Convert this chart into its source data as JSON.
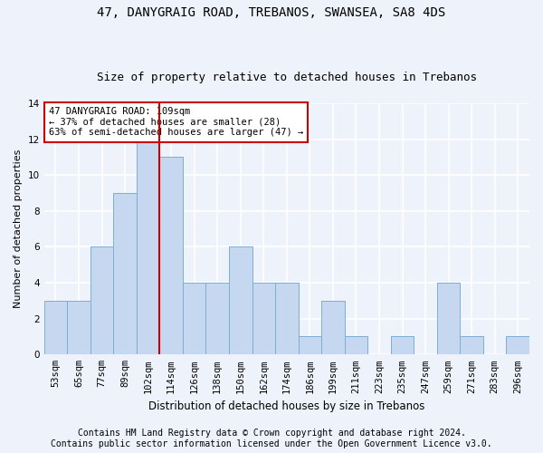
{
  "title1": "47, DANYGRAIG ROAD, TREBANOS, SWANSEA, SA8 4DS",
  "title2": "Size of property relative to detached houses in Trebanos",
  "xlabel": "Distribution of detached houses by size in Trebanos",
  "ylabel": "Number of detached properties",
  "categories": [
    "53sqm",
    "65sqm",
    "77sqm",
    "89sqm",
    "102sqm",
    "114sqm",
    "126sqm",
    "138sqm",
    "150sqm",
    "162sqm",
    "174sqm",
    "186sqm",
    "199sqm",
    "211sqm",
    "223sqm",
    "235sqm",
    "247sqm",
    "259sqm",
    "271sqm",
    "283sqm",
    "296sqm"
  ],
  "values": [
    3,
    3,
    6,
    9,
    12,
    11,
    4,
    4,
    6,
    4,
    4,
    1,
    3,
    1,
    0,
    1,
    0,
    4,
    1,
    0,
    1
  ],
  "bar_color": "#c5d8f0",
  "bar_edge_color": "#7bafd4",
  "vline_x_index": 4,
  "vline_color": "#cc0000",
  "annotation_line1": "47 DANYGRAIG ROAD: 109sqm",
  "annotation_line2": "← 37% of detached houses are smaller (28)",
  "annotation_line3": "63% of semi-detached houses are larger (47) →",
  "annotation_box_color": "white",
  "annotation_box_edge_color": "#cc0000",
  "ylim": [
    0,
    14
  ],
  "yticks": [
    0,
    2,
    4,
    6,
    8,
    10,
    12,
    14
  ],
  "footer1": "Contains HM Land Registry data © Crown copyright and database right 2024.",
  "footer2": "Contains public sector information licensed under the Open Government Licence v3.0.",
  "background_color": "#eef2fa",
  "grid_color": "#ffffff",
  "title1_fontsize": 10,
  "title2_fontsize": 9,
  "xlabel_fontsize": 8.5,
  "ylabel_fontsize": 8,
  "tick_fontsize": 7.5,
  "annotation_fontsize": 7.5,
  "footer_fontsize": 7
}
